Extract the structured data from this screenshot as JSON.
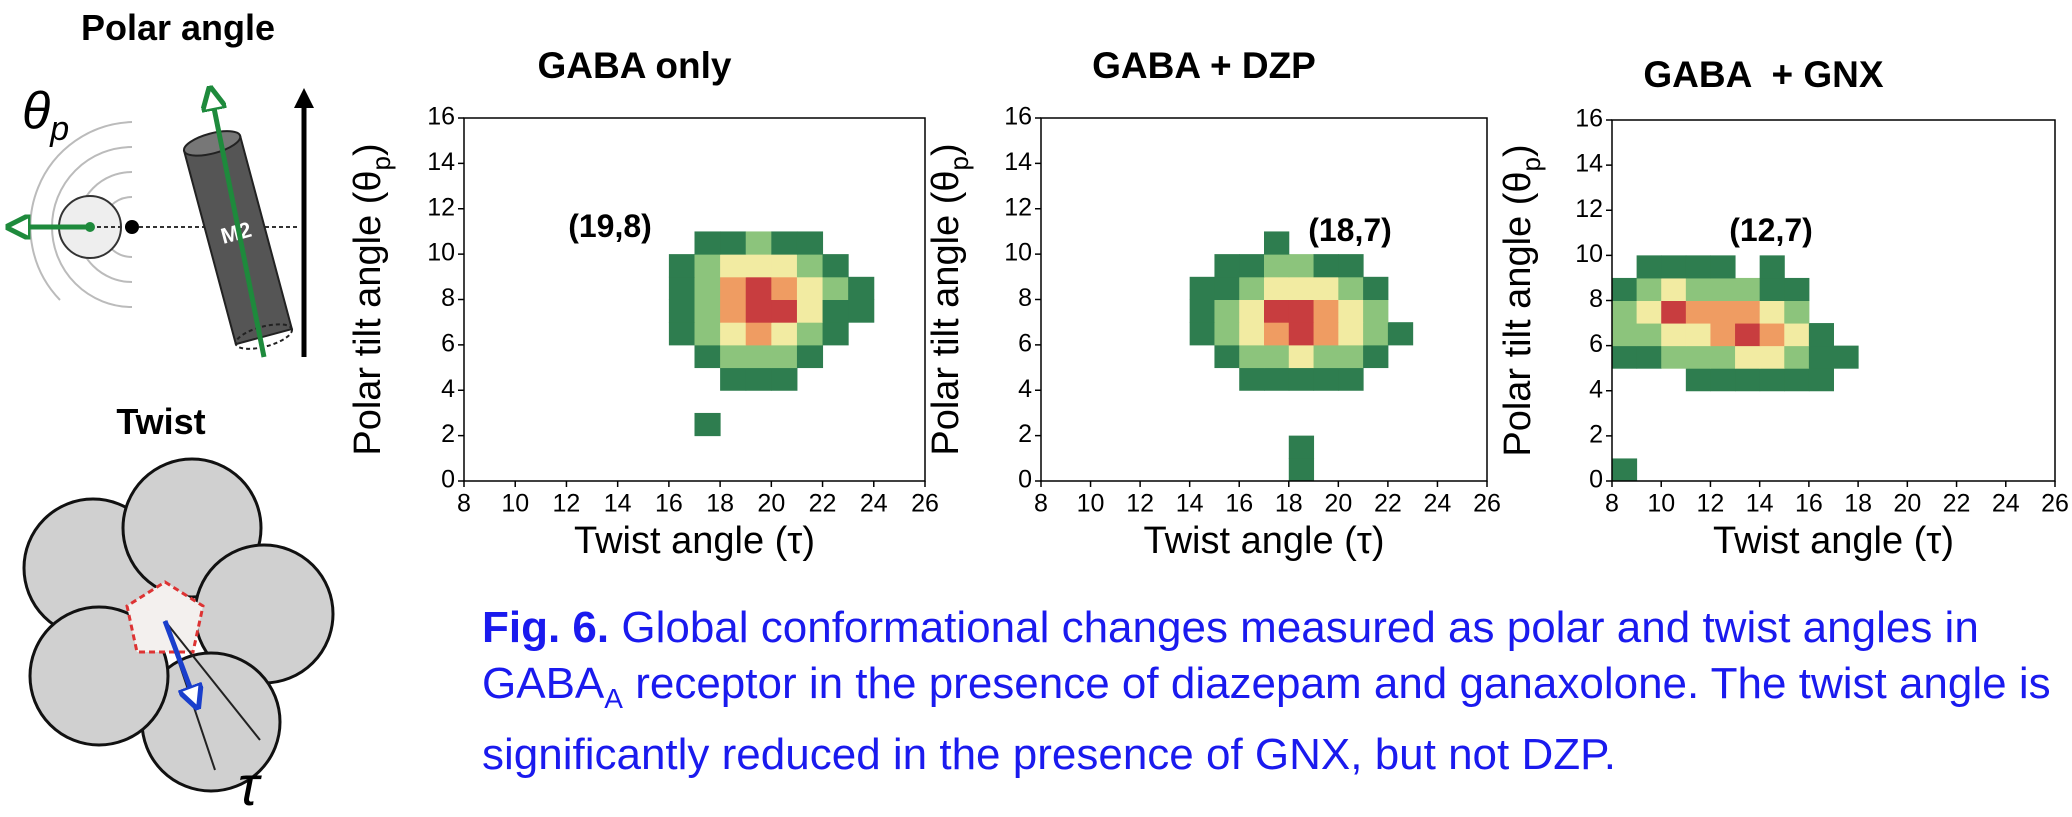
{
  "diagram": {
    "polar_title": "Polar angle",
    "theta": "θ",
    "theta_sub": "p",
    "m2": "M2",
    "twist_title": "Twist",
    "tau": "τ"
  },
  "chart_data": [
    {
      "type": "heatmap",
      "title": "GABA only",
      "annotation": "(19,8)",
      "xlabel": "Twist angle (τ)",
      "ylabel": "Polar tilt angle (θ",
      "ylabel_subscript": "p",
      "ylabel_end": ")",
      "xlim": [
        8,
        26
      ],
      "ylim": [
        0,
        16
      ],
      "xticks": [
        8,
        10,
        12,
        14,
        16,
        18,
        20,
        22,
        24,
        26
      ],
      "yticks": [
        0,
        2,
        4,
        6,
        8,
        10,
        12,
        14,
        16
      ],
      "colors": [
        "#2e7d4f",
        "#8cc47c",
        "#f2eba2",
        "#ef9c62",
        "#c83d3f"
      ],
      "xbins": [
        15,
        16,
        17,
        18,
        19,
        20,
        21,
        22,
        23,
        24
      ],
      "ybins": [
        2,
        3,
        4,
        5,
        6,
        7,
        8,
        9,
        10,
        11
      ],
      "counts": [
        [
          0,
          0,
          1,
          0,
          0,
          0,
          0,
          0,
          0
        ],
        [
          0,
          0,
          0,
          0,
          0,
          0,
          0,
          0,
          0
        ],
        [
          0,
          0,
          0,
          1,
          1,
          1,
          0,
          0,
          0
        ],
        [
          0,
          0,
          1,
          2,
          2,
          2,
          1,
          0,
          0
        ],
        [
          0,
          1,
          2,
          3,
          4,
          3,
          2,
          1,
          0
        ],
        [
          0,
          1,
          2,
          4,
          5,
          5,
          3,
          1,
          1
        ],
        [
          0,
          1,
          2,
          4,
          5,
          4,
          3,
          2,
          1
        ],
        [
          0,
          1,
          2,
          3,
          3,
          3,
          2,
          1,
          0
        ],
        [
          0,
          0,
          1,
          1,
          2,
          1,
          1,
          0,
          0
        ]
      ]
    },
    {
      "type": "heatmap",
      "title": "GABA + DZP",
      "annotation": "(18,7)",
      "xlabel": "Twist angle (τ)",
      "ylabel": "Polar tilt angle (θ",
      "ylabel_subscript": "p",
      "ylabel_end": ")",
      "xlim": [
        8,
        26
      ],
      "ylim": [
        0,
        16
      ],
      "xticks": [
        8,
        10,
        12,
        14,
        16,
        18,
        20,
        22,
        24,
        26
      ],
      "yticks": [
        0,
        2,
        4,
        6,
        8,
        10,
        12,
        14,
        16
      ],
      "colors": [
        "#2e7d4f",
        "#8cc47c",
        "#f2eba2",
        "#ef9c62",
        "#c83d3f"
      ],
      "xbins": [
        14,
        15,
        16,
        17,
        18,
        19,
        20,
        21,
        22,
        23
      ],
      "ybins": [
        0,
        1,
        2,
        3,
        4,
        5,
        6,
        7,
        8,
        9,
        10,
        11
      ],
      "counts": [
        [
          0,
          0,
          0,
          0,
          1,
          0,
          0,
          0,
          0
        ],
        [
          0,
          0,
          0,
          0,
          1,
          0,
          0,
          0,
          0
        ],
        [
          0,
          0,
          0,
          0,
          0,
          0,
          0,
          0,
          0
        ],
        [
          0,
          0,
          0,
          0,
          0,
          0,
          0,
          0,
          0
        ],
        [
          0,
          0,
          1,
          1,
          1,
          1,
          1,
          0,
          0
        ],
        [
          0,
          1,
          2,
          2,
          3,
          2,
          2,
          1,
          0
        ],
        [
          1,
          2,
          3,
          4,
          5,
          4,
          3,
          2,
          1
        ],
        [
          1,
          2,
          3,
          5,
          5,
          4,
          3,
          2,
          0
        ],
        [
          1,
          1,
          2,
          3,
          3,
          3,
          2,
          1,
          0
        ],
        [
          0,
          1,
          1,
          2,
          2,
          1,
          1,
          0,
          0
        ],
        [
          0,
          0,
          0,
          1,
          0,
          0,
          0,
          0,
          0
        ]
      ]
    },
    {
      "type": "heatmap",
      "title": "GABA  + GNX",
      "annotation": "(12,7)",
      "xlabel": "Twist angle (τ)",
      "ylabel": "Polar tilt angle (θ",
      "ylabel_subscript": "p",
      "ylabel_end": ")",
      "xlim": [
        8,
        26
      ],
      "ylim": [
        0,
        16
      ],
      "xticks": [
        8,
        10,
        12,
        14,
        16,
        18,
        20,
        22,
        24,
        26
      ],
      "yticks": [
        0,
        2,
        4,
        6,
        8,
        10,
        12,
        14,
        16
      ],
      "colors": [
        "#2e7d4f",
        "#8cc47c",
        "#f2eba2",
        "#ef9c62",
        "#c83d3f"
      ],
      "xbins": [
        8,
        9,
        10,
        11,
        12,
        13,
        14,
        15,
        16,
        17,
        18
      ],
      "ybins": [
        0,
        1,
        2,
        3,
        4,
        5,
        6,
        7,
        8,
        9,
        10
      ],
      "counts": [
        [
          1,
          0,
          0,
          0,
          0,
          0,
          0,
          0,
          0,
          0
        ],
        [
          0,
          0,
          0,
          0,
          0,
          0,
          0,
          0,
          0,
          0
        ],
        [
          0,
          0,
          0,
          0,
          0,
          0,
          0,
          0,
          0,
          0
        ],
        [
          0,
          0,
          0,
          0,
          0,
          0,
          0,
          0,
          0,
          0
        ],
        [
          0,
          0,
          0,
          1,
          1,
          1,
          1,
          1,
          1,
          0
        ],
        [
          1,
          1,
          2,
          2,
          2,
          3,
          3,
          2,
          1,
          1
        ],
        [
          2,
          2,
          3,
          3,
          4,
          5,
          4,
          3,
          1,
          0
        ],
        [
          2,
          3,
          5,
          4,
          4,
          4,
          3,
          2,
          0,
          0
        ],
        [
          1,
          2,
          3,
          2,
          2,
          2,
          1,
          1,
          0,
          0
        ],
        [
          0,
          1,
          1,
          1,
          1,
          0,
          1,
          0,
          0,
          0
        ]
      ]
    }
  ],
  "caption": {
    "label": "Fig. 6.",
    "text_1": " Global conformational changes measured as polar and twist angles in GABA",
    "subscript": "A",
    "text_2": " receptor in the presence of diazepam and ganaxolone. The twist angle is significantly reduced in the presence of GNX, but not DZP."
  }
}
